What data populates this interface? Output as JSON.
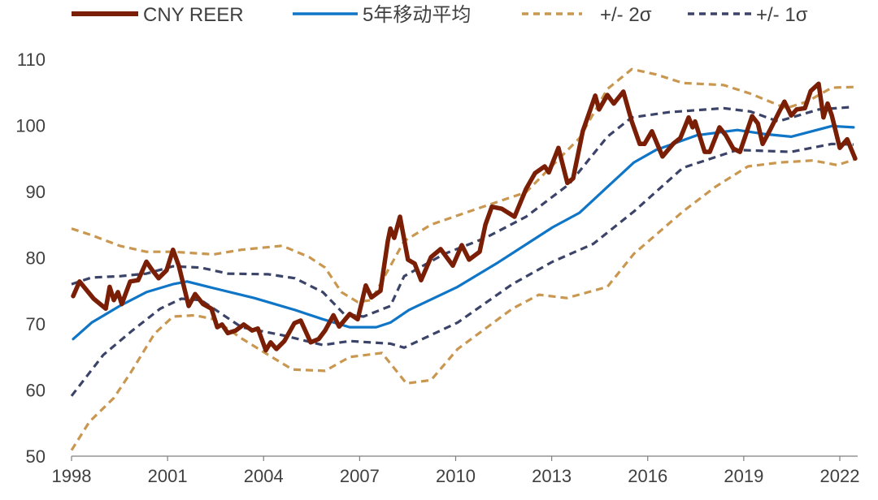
{
  "chart_data": {
    "type": "line",
    "title": "",
    "xlabel": "",
    "ylabel": "",
    "xlim": [
      1998,
      2022.5
    ],
    "ylim": [
      50,
      110
    ],
    "x_ticks": [
      "1998",
      "2001",
      "2004",
      "2007",
      "2010",
      "2013",
      "2016",
      "2019",
      "2022"
    ],
    "y_ticks": [
      "50",
      "60",
      "70",
      "80",
      "90",
      "100",
      "110"
    ],
    "grid": false,
    "legend_position": "top",
    "series": [
      {
        "name": "CNY REER",
        "color": "#7A1F06",
        "style": "solid-thick",
        "points": [
          [
            1998.05,
            74.2
          ],
          [
            1998.25,
            76.4
          ],
          [
            1998.69,
            73.8
          ],
          [
            1999.07,
            72.3
          ],
          [
            1999.19,
            75.6
          ],
          [
            1999.32,
            73.6
          ],
          [
            1999.45,
            74.8
          ],
          [
            1999.57,
            73
          ],
          [
            1999.83,
            76.4
          ],
          [
            2000.08,
            76.6
          ],
          [
            2000.34,
            79.4
          ],
          [
            2000.51,
            78.2
          ],
          [
            2000.72,
            76.9
          ],
          [
            2000.97,
            78.1
          ],
          [
            2001.17,
            81.2
          ],
          [
            2001.35,
            78.8
          ],
          [
            2001.66,
            72.7
          ],
          [
            2001.86,
            74.5
          ],
          [
            2002.11,
            73
          ],
          [
            2002.37,
            72.3
          ],
          [
            2002.55,
            69.5
          ],
          [
            2002.7,
            69.9
          ],
          [
            2002.88,
            68.6
          ],
          [
            2003.13,
            69
          ],
          [
            2003.38,
            69.9
          ],
          [
            2003.64,
            69
          ],
          [
            2003.82,
            69.3
          ],
          [
            2004.07,
            66
          ],
          [
            2004.22,
            67.2
          ],
          [
            2004.4,
            66.2
          ],
          [
            2004.65,
            67.4
          ],
          [
            2004.96,
            70.1
          ],
          [
            2005.16,
            70.5
          ],
          [
            2005.47,
            67.2
          ],
          [
            2005.72,
            67.7
          ],
          [
            2005.92,
            69
          ],
          [
            2006.18,
            71.3
          ],
          [
            2006.36,
            69.6
          ],
          [
            2006.69,
            71.5
          ],
          [
            2006.94,
            70.7
          ],
          [
            2007.19,
            75.8
          ],
          [
            2007.37,
            74
          ],
          [
            2007.65,
            75
          ],
          [
            2007.88,
            82.5
          ],
          [
            2007.96,
            84.4
          ],
          [
            2008.08,
            83
          ],
          [
            2008.26,
            86.2
          ],
          [
            2008.51,
            79.7
          ],
          [
            2008.72,
            79.1
          ],
          [
            2008.92,
            76.6
          ],
          [
            2009.23,
            80.1
          ],
          [
            2009.53,
            81.3
          ],
          [
            2009.91,
            78.8
          ],
          [
            2010.19,
            81.9
          ],
          [
            2010.42,
            79.7
          ],
          [
            2010.75,
            80.9
          ],
          [
            2010.93,
            85
          ],
          [
            2011.13,
            87.7
          ],
          [
            2011.44,
            87.4
          ],
          [
            2011.84,
            86.2
          ],
          [
            2012.2,
            90.4
          ],
          [
            2012.48,
            92.8
          ],
          [
            2012.78,
            93.8
          ],
          [
            2012.91,
            92.9
          ],
          [
            2013.21,
            96.6
          ],
          [
            2013.49,
            91.3
          ],
          [
            2013.67,
            92
          ],
          [
            2013.97,
            99.1
          ],
          [
            2014.36,
            104.5
          ],
          [
            2014.48,
            102.4
          ],
          [
            2014.74,
            104.6
          ],
          [
            2014.94,
            103.3
          ],
          [
            2015.24,
            105.1
          ],
          [
            2015.5,
            100.6
          ],
          [
            2015.75,
            97.2
          ],
          [
            2015.9,
            97.2
          ],
          [
            2016.13,
            99.1
          ],
          [
            2016.46,
            95.3
          ],
          [
            2016.79,
            97.2
          ],
          [
            2017.02,
            98.1
          ],
          [
            2017.28,
            101.2
          ],
          [
            2017.4,
            99.7
          ],
          [
            2017.48,
            100.6
          ],
          [
            2017.78,
            96
          ],
          [
            2017.94,
            96
          ],
          [
            2018.24,
            99.7
          ],
          [
            2018.44,
            98.5
          ],
          [
            2018.67,
            96.5
          ],
          [
            2018.88,
            96
          ],
          [
            2019.26,
            101.4
          ],
          [
            2019.44,
            100.3
          ],
          [
            2019.59,
            97.2
          ],
          [
            2019.82,
            99.3
          ],
          [
            2020.1,
            102
          ],
          [
            2020.27,
            103.6
          ],
          [
            2020.48,
            101.5
          ],
          [
            2020.65,
            102.4
          ],
          [
            2020.91,
            102.6
          ],
          [
            2021.09,
            105.2
          ],
          [
            2021.34,
            106.3
          ],
          [
            2021.49,
            101.2
          ],
          [
            2021.62,
            103.3
          ],
          [
            2021.75,
            101.5
          ],
          [
            2022.0,
            96.6
          ],
          [
            2022.23,
            97.9
          ],
          [
            2022.48,
            95
          ]
        ]
      },
      {
        "name": "5年移动平均",
        "color": "#0F75C6",
        "style": "solid",
        "points": [
          [
            1998.05,
            67.7
          ],
          [
            1998.63,
            70.2
          ],
          [
            1999.5,
            72.7
          ],
          [
            2000.34,
            74.8
          ],
          [
            2001.17,
            76
          ],
          [
            2001.61,
            76.4
          ],
          [
            2002.44,
            75.4
          ],
          [
            2003.71,
            73.9
          ],
          [
            2004.98,
            72.1
          ],
          [
            2005.85,
            70.7
          ],
          [
            2006.69,
            69.5
          ],
          [
            2007.52,
            69.5
          ],
          [
            2007.96,
            70.2
          ],
          [
            2008.54,
            72.1
          ],
          [
            2010.06,
            75.6
          ],
          [
            2011.33,
            79.3
          ],
          [
            2013.03,
            84.6
          ],
          [
            2013.87,
            86.8
          ],
          [
            2014.74,
            90.7
          ],
          [
            2015.57,
            94.4
          ],
          [
            2016.26,
            96.3
          ],
          [
            2017.53,
            98.5
          ],
          [
            2018.8,
            99.3
          ],
          [
            2019.64,
            98.7
          ],
          [
            2020.48,
            98.3
          ],
          [
            2021.75,
            99.9
          ],
          [
            2022.43,
            99.7
          ]
        ]
      },
      {
        "name": "+/- 2σ",
        "color": "#C9974F",
        "style": "dashed",
        "points": [
          [
            1998.0,
            84.4
          ],
          [
            1998.63,
            83.4
          ],
          [
            1999.5,
            81.8
          ],
          [
            2000.34,
            80.9
          ],
          [
            2001.17,
            80.9
          ],
          [
            2002.44,
            80.5
          ],
          [
            2003.31,
            81.2
          ],
          [
            2004.58,
            81.8
          ],
          [
            2005.42,
            80.1
          ],
          [
            2005.92,
            78.5
          ],
          [
            2006.43,
            74.8
          ],
          [
            2006.94,
            73.3
          ],
          [
            2007.37,
            73.6
          ],
          [
            2008.39,
            82.5
          ],
          [
            2009.23,
            85
          ],
          [
            2010.49,
            87.1
          ],
          [
            2012.2,
            89.9
          ],
          [
            2013.87,
            98.1
          ],
          [
            2014.74,
            105.5
          ],
          [
            2015.5,
            108.5
          ],
          [
            2016.26,
            107.7
          ],
          [
            2017.1,
            106.4
          ],
          [
            2018.37,
            106.1
          ],
          [
            2019.21,
            104.8
          ],
          [
            2020.32,
            102.6
          ],
          [
            2020.98,
            103.6
          ],
          [
            2021.75,
            105.7
          ],
          [
            2022.43,
            105.8
          ]
        ],
        "lower_points": [
          [
            1998.0,
            50.9
          ],
          [
            1998.56,
            55.2
          ],
          [
            1999.32,
            58.8
          ],
          [
            1999.83,
            62.5
          ],
          [
            2000.59,
            68.5
          ],
          [
            2001.17,
            71.1
          ],
          [
            2001.86,
            71.3
          ],
          [
            2002.44,
            70.7
          ],
          [
            2003.31,
            67.8
          ],
          [
            2004.15,
            65.3
          ],
          [
            2004.9,
            63.1
          ],
          [
            2005.92,
            62.9
          ],
          [
            2006.69,
            65
          ],
          [
            2007.7,
            65.6
          ],
          [
            2008.46,
            61
          ],
          [
            2009.23,
            61.5
          ],
          [
            2010.06,
            66.2
          ],
          [
            2011.77,
            72.3
          ],
          [
            2012.6,
            74.4
          ],
          [
            2013.47,
            73.9
          ],
          [
            2014.74,
            75.6
          ],
          [
            2015.57,
            80.6
          ],
          [
            2017.1,
            87
          ],
          [
            2018.11,
            90.7
          ],
          [
            2019.13,
            93.8
          ],
          [
            2020.15,
            94.4
          ],
          [
            2021.16,
            94.7
          ],
          [
            2021.92,
            94
          ],
          [
            2022.43,
            94.8
          ]
        ]
      },
      {
        "name": "+/- 1σ",
        "color": "#3B4468",
        "style": "dashed",
        "points": [
          [
            1998.0,
            76
          ],
          [
            1998.63,
            77
          ],
          [
            1999.5,
            77.2
          ],
          [
            2000.34,
            77.6
          ],
          [
            2001.17,
            78.7
          ],
          [
            2002.04,
            78.5
          ],
          [
            2002.88,
            77.6
          ],
          [
            2004.15,
            77.5
          ],
          [
            2004.98,
            76.9
          ],
          [
            2005.85,
            74.8
          ],
          [
            2006.51,
            71.5
          ],
          [
            2007.12,
            71.1
          ],
          [
            2007.96,
            72.7
          ],
          [
            2008.39,
            77.2
          ],
          [
            2009.66,
            80.6
          ],
          [
            2010.93,
            83
          ],
          [
            2012.2,
            86.2
          ],
          [
            2013.54,
            91.1
          ],
          [
            2014.74,
            98.3
          ],
          [
            2015.5,
            101.2
          ],
          [
            2016.67,
            102
          ],
          [
            2018.37,
            102.6
          ],
          [
            2019.21,
            102.1
          ],
          [
            2020.07,
            100.6
          ],
          [
            2021.34,
            102.4
          ],
          [
            2022.43,
            102.8
          ]
        ],
        "lower_points": [
          [
            1998.0,
            59.1
          ],
          [
            1998.99,
            65.3
          ],
          [
            1999.9,
            69
          ],
          [
            2000.77,
            72.3
          ],
          [
            2001.43,
            73.8
          ],
          [
            2002.04,
            73.6
          ],
          [
            2003.31,
            69.5
          ],
          [
            2004.58,
            68.3
          ],
          [
            2005.85,
            66.8
          ],
          [
            2006.69,
            67.4
          ],
          [
            2007.96,
            67
          ],
          [
            2008.39,
            66.4
          ],
          [
            2010.06,
            70.2
          ],
          [
            2011.77,
            76
          ],
          [
            2013.03,
            79.4
          ],
          [
            2014.3,
            82.1
          ],
          [
            2015.57,
            87
          ],
          [
            2017.1,
            93.6
          ],
          [
            2018.8,
            96.3
          ],
          [
            2020.48,
            96
          ],
          [
            2021.75,
            97.2
          ],
          [
            2022.43,
            97.1
          ]
        ]
      }
    ]
  }
}
